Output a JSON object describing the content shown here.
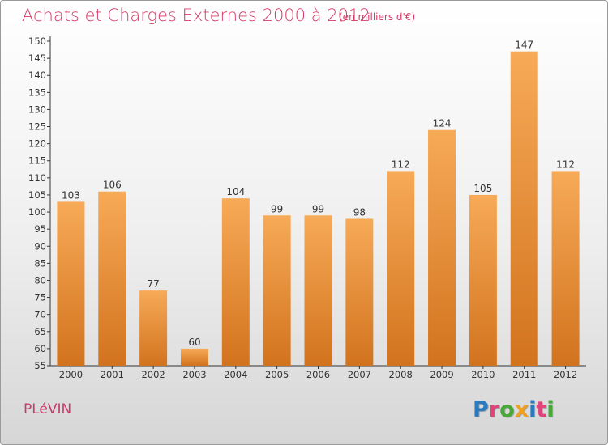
{
  "title": "Achats et Charges Externes 2000 à 2012",
  "subtitle": "(en milliers d'€)",
  "location": "PLéVIN",
  "brand": "Proxiti",
  "brand_colors": [
    "#2a7ac0",
    "#e0427a",
    "#4aa83a",
    "#f0a020",
    "#2a7ac0",
    "#e0427a",
    "#4aa83a"
  ],
  "colors": {
    "bar_light": "#f7aa57",
    "bar_dark": "#d2731e",
    "title": "#d63a67",
    "axis": "#333333"
  },
  "chart_data": {
    "type": "bar",
    "title": "Achats et Charges Externes 2000 à 2012",
    "subtitle": "(en milliers d'€)",
    "categories": [
      "2000",
      "2001",
      "2002",
      "2003",
      "2004",
      "2005",
      "2006",
      "2007",
      "2008",
      "2009",
      "2010",
      "2011",
      "2012"
    ],
    "values": [
      103,
      106,
      77,
      60,
      104,
      99,
      99,
      98,
      112,
      124,
      105,
      147,
      112
    ],
    "xlabel": "",
    "ylabel": "",
    "ylim": [
      55,
      150
    ],
    "yticks": [
      55,
      60,
      65,
      70,
      75,
      80,
      85,
      90,
      95,
      100,
      105,
      110,
      115,
      120,
      125,
      130,
      135,
      140,
      145,
      150
    ],
    "grid": false,
    "data_labels": true
  }
}
